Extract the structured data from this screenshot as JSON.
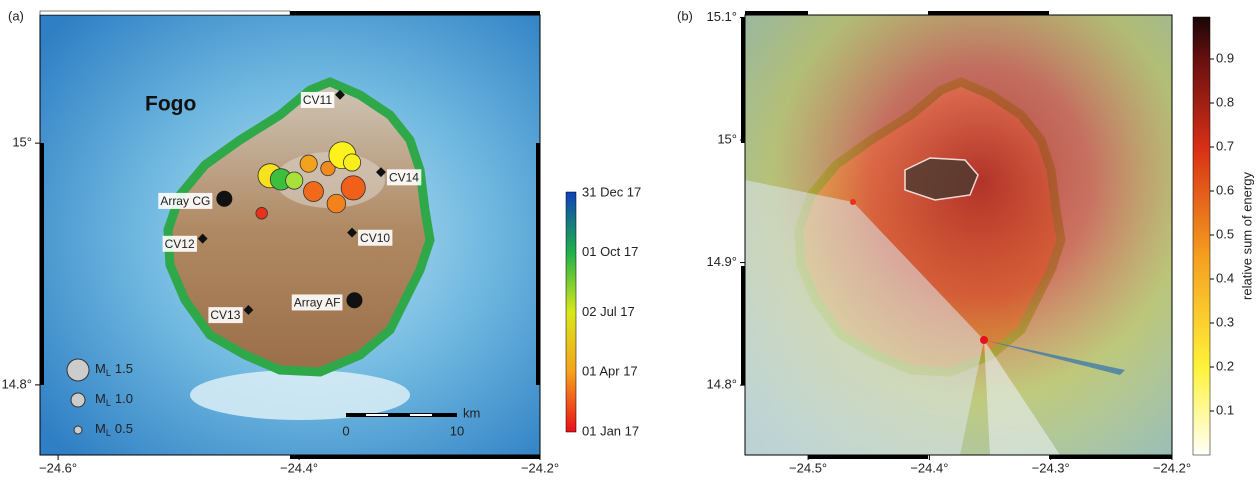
{
  "panel_a": {
    "label": "(a)",
    "island_name": "Fogo",
    "xlim": [
      -24.615,
      -24.2
    ],
    "ylim": [
      14.742,
      15.106
    ],
    "xticks": [
      {
        "value": -24.6,
        "label": "−24.6°"
      },
      {
        "value": -24.4,
        "label": "−24.4°"
      },
      {
        "value": -24.2,
        "label": "−24.2°"
      }
    ],
    "yticks": [
      {
        "value": 15,
        "label": "15°"
      },
      {
        "value": 14.8,
        "label": "14.8°"
      }
    ],
    "stations": [
      {
        "name": "CV11",
        "lon": -24.366,
        "lat": 15.04
      },
      {
        "name": "CV14",
        "lon": -24.332,
        "lat": 14.976
      },
      {
        "name": "CV10",
        "lon": -24.356,
        "lat": 14.926
      },
      {
        "name": "CV12",
        "lon": -24.48,
        "lat": 14.921
      },
      {
        "name": "CV13",
        "lon": -24.442,
        "lat": 14.862
      }
    ],
    "arrays": [
      {
        "name": "Array CG",
        "lon": -24.462,
        "lat": 14.954
      },
      {
        "name": "Array AF",
        "lon": -24.354,
        "lat": 14.87
      }
    ],
    "events": [
      {
        "lon": -24.424,
        "lat": 14.973,
        "magnitude": 1.3,
        "color": "#f7e21d"
      },
      {
        "lon": -24.415,
        "lat": 14.97,
        "magnitude": 1.1,
        "color": "#3cbf3c"
      },
      {
        "lon": -24.404,
        "lat": 14.969,
        "magnitude": 0.8,
        "color": "#a6e23a"
      },
      {
        "lon": -24.392,
        "lat": 14.983,
        "magnitude": 0.8,
        "color": "#f2a21c"
      },
      {
        "lon": -24.388,
        "lat": 14.96,
        "magnitude": 1.0,
        "color": "#f06a1a"
      },
      {
        "lon": -24.376,
        "lat": 14.979,
        "magnitude": 0.6,
        "color": "#f08a1c"
      },
      {
        "lon": -24.369,
        "lat": 14.95,
        "magnitude": 0.9,
        "color": "#f3821c"
      },
      {
        "lon": -24.364,
        "lat": 14.99,
        "magnitude": 1.5,
        "color": "#fff21c"
      },
      {
        "lon": -24.356,
        "lat": 14.984,
        "magnitude": 0.8,
        "color": "#f9ee1c"
      },
      {
        "lon": -24.355,
        "lat": 14.963,
        "magnitude": 1.3,
        "color": "#f0601a"
      },
      {
        "lon": -24.431,
        "lat": 14.942,
        "magnitude": 0.4,
        "color": "#e8301a"
      }
    ],
    "legend": [
      {
        "symbol": "M",
        "sub": "L",
        "magnitude": "1.5"
      },
      {
        "symbol": "M",
        "sub": "L",
        "magnitude": "1.0"
      },
      {
        "symbol": "M",
        "sub": "L",
        "magnitude": "0.5"
      }
    ],
    "scale_bar": {
      "start": "0",
      "end": "10",
      "unit": "km"
    },
    "colorbar_labels": [
      "31 Dec 17",
      "01 Oct 17",
      "02 Jul 17",
      "01 Apr 17",
      "01 Jan 17"
    ]
  },
  "panel_b": {
    "label": "(b)",
    "xlim": [
      -24.552,
      -24.2
    ],
    "ylim": [
      14.743,
      15.102
    ],
    "xticks": [
      {
        "value": -24.5,
        "label": "−24.5°"
      },
      {
        "value": -24.4,
        "label": "−24.4°"
      },
      {
        "value": -24.3,
        "label": "−24.3°"
      },
      {
        "value": -24.2,
        "label": "−24.2°"
      }
    ],
    "yticks": [
      {
        "value": 15.1,
        "label": "15.1°"
      },
      {
        "value": 15,
        "label": "15°"
      },
      {
        "value": 14.9,
        "label": "14.9°"
      },
      {
        "value": 14.8,
        "label": "14.8°"
      }
    ],
    "colorbar": {
      "title": "relative sum of energy",
      "lim": [
        0,
        1
      ],
      "ticks": [
        0.1,
        0.2,
        0.3,
        0.4,
        0.5,
        0.6,
        0.7,
        0.8,
        0.9
      ]
    }
  }
}
